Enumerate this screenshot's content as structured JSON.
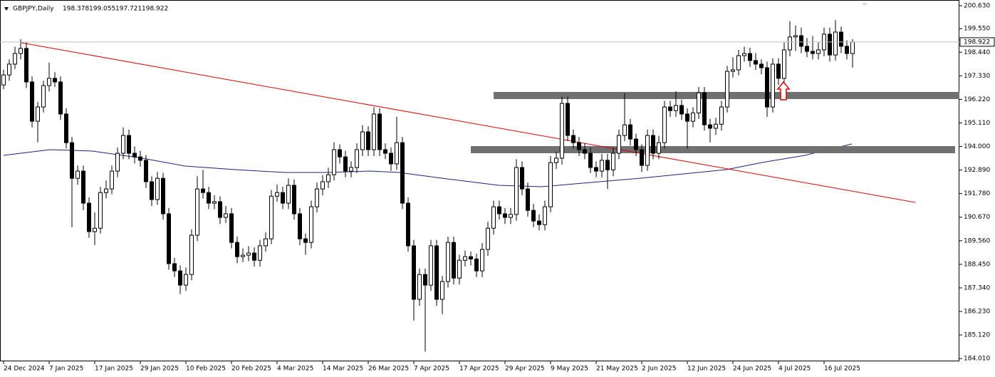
{
  "chart_data": {
    "type": "candlestick",
    "symbol": "GBPJPY,Daily",
    "bull_color": "#ffffff",
    "bear_color": "#000000",
    "ylim": [
      183.88,
      200.9
    ],
    "yticks": [
      {
        "value": 200.63,
        "label": "200.630"
      },
      {
        "value": 199.55,
        "label": "199.550"
      },
      {
        "value": 198.44,
        "label": "198.440"
      },
      {
        "value": 197.33,
        "label": "197.330"
      },
      {
        "value": 196.22,
        "label": "196.220"
      },
      {
        "value": 195.11,
        "label": "195.110"
      },
      {
        "value": 194.0,
        "label": "194.000"
      },
      {
        "value": 192.89,
        "label": "192.890"
      },
      {
        "value": 191.78,
        "label": "191.780"
      },
      {
        "value": 190.67,
        "label": "190.670"
      },
      {
        "value": 189.56,
        "label": "189.560"
      },
      {
        "value": 188.45,
        "label": "188.450"
      },
      {
        "value": 187.34,
        "label": "187.340"
      },
      {
        "value": 186.23,
        "label": "186.230"
      },
      {
        "value": 185.12,
        "label": "185.120"
      },
      {
        "value": 184.01,
        "label": "184.010"
      }
    ],
    "categories": [
      "24 Dec 2024",
      null,
      null,
      null,
      null,
      null,
      null,
      null,
      "7 Jan 2025",
      null,
      null,
      null,
      null,
      null,
      null,
      null,
      "17 Jan 2025",
      null,
      null,
      null,
      null,
      null,
      null,
      null,
      "29 Jan 2025",
      null,
      null,
      null,
      null,
      null,
      null,
      null,
      "10 Feb 2025",
      null,
      null,
      null,
      null,
      null,
      null,
      null,
      "20 Feb 2025",
      null,
      null,
      null,
      null,
      null,
      null,
      null,
      "4 Mar 2025",
      null,
      null,
      null,
      null,
      null,
      null,
      null,
      "14 Mar 2025",
      null,
      null,
      null,
      null,
      null,
      null,
      null,
      "26 Mar 2025",
      null,
      null,
      null,
      null,
      null,
      null,
      null,
      "7 Apr 2025",
      null,
      null,
      null,
      null,
      null,
      null,
      null,
      "17 Apr 2025",
      null,
      null,
      null,
      null,
      null,
      null,
      null,
      "29 Apr 2025",
      null,
      null,
      null,
      null,
      null,
      null,
      null,
      "9 May 2025",
      null,
      null,
      null,
      null,
      null,
      null,
      null,
      "21 May 2025",
      null,
      null,
      null,
      null,
      null,
      null,
      null,
      "2 Jun 2025",
      null,
      null,
      null,
      null,
      null,
      null,
      null,
      "12 Jun 2025",
      null,
      null,
      null,
      null,
      null,
      null,
      null,
      "24 Jun 2025",
      null,
      null,
      null,
      null,
      null,
      null,
      null,
      "4 Jul 2025",
      null,
      null,
      null,
      null,
      null,
      null,
      null,
      "16 Jul 2025",
      null,
      null,
      null,
      null,
      null
    ],
    "ohlc": [
      [
        196.9,
        197.62,
        196.7,
        197.37
      ],
      [
        197.37,
        198.1,
        197.1,
        197.88
      ],
      [
        197.88,
        198.7,
        197.65,
        198.38
      ],
      [
        198.38,
        199.05,
        198.1,
        198.62
      ],
      [
        198.62,
        198.9,
        196.75,
        197.04
      ],
      [
        197.04,
        197.3,
        194.9,
        195.19
      ],
      [
        195.19,
        196.1,
        194.2,
        195.86
      ],
      [
        195.86,
        197.1,
        195.6,
        196.87
      ],
      [
        196.87,
        197.95,
        196.6,
        197.21
      ],
      [
        197.21,
        197.5,
        196.8,
        197.04
      ],
      [
        197.04,
        197.3,
        195.25,
        195.53
      ],
      [
        195.53,
        195.8,
        193.9,
        194.18
      ],
      [
        194.18,
        194.45,
        190.2,
        192.5
      ],
      [
        192.5,
        193.1,
        192.2,
        192.84
      ],
      [
        192.84,
        193.1,
        191.0,
        191.33
      ],
      [
        191.33,
        191.6,
        189.7,
        189.99
      ],
      [
        189.99,
        190.9,
        189.35,
        190.15
      ],
      [
        190.15,
        192.1,
        189.9,
        191.83
      ],
      [
        191.83,
        192.4,
        191.55,
        192.0
      ],
      [
        192.0,
        193.1,
        191.75,
        192.84
      ],
      [
        192.84,
        193.95,
        192.55,
        193.68
      ],
      [
        193.68,
        194.9,
        193.4,
        194.52
      ],
      [
        194.52,
        194.8,
        193.4,
        193.68
      ],
      [
        193.68,
        194.0,
        193.2,
        193.51
      ],
      [
        193.51,
        193.8,
        193.05,
        193.35
      ],
      [
        193.35,
        193.6,
        192.05,
        192.34
      ],
      [
        192.34,
        192.6,
        191.2,
        191.5
      ],
      [
        191.5,
        192.8,
        191.25,
        192.5
      ],
      [
        192.5,
        192.75,
        190.55,
        190.83
      ],
      [
        190.83,
        191.1,
        188.2,
        188.48
      ],
      [
        188.48,
        188.75,
        187.85,
        188.14
      ],
      [
        188.14,
        188.4,
        187.05,
        187.47
      ],
      [
        187.47,
        188.3,
        187.2,
        187.97
      ],
      [
        187.97,
        190.1,
        187.7,
        189.82
      ],
      [
        189.82,
        192.6,
        189.55,
        192.0
      ],
      [
        192.0,
        192.9,
        191.55,
        191.83
      ],
      [
        191.83,
        192.1,
        191.05,
        191.33
      ],
      [
        191.33,
        191.7,
        191.05,
        191.4
      ],
      [
        191.4,
        191.65,
        190.35,
        190.66
      ],
      [
        190.66,
        191.2,
        190.4,
        190.83
      ],
      [
        190.83,
        191.1,
        189.2,
        189.48
      ],
      [
        189.48,
        189.75,
        188.5,
        188.81
      ],
      [
        188.81,
        189.2,
        188.55,
        188.88
      ],
      [
        188.88,
        189.3,
        188.6,
        188.98
      ],
      [
        188.98,
        189.25,
        188.35,
        188.64
      ],
      [
        188.64,
        189.6,
        188.35,
        189.32
      ],
      [
        189.32,
        189.95,
        189.05,
        189.65
      ],
      [
        189.65,
        191.95,
        189.4,
        191.66
      ],
      [
        191.66,
        192.2,
        191.4,
        191.83
      ],
      [
        191.83,
        192.1,
        191.05,
        191.33
      ],
      [
        191.33,
        192.5,
        191.05,
        192.17
      ],
      [
        192.17,
        192.45,
        190.55,
        190.83
      ],
      [
        190.83,
        191.1,
        189.35,
        189.65
      ],
      [
        189.65,
        189.9,
        188.9,
        189.48
      ],
      [
        189.48,
        191.45,
        189.2,
        191.16
      ],
      [
        191.16,
        192.3,
        190.9,
        192.0
      ],
      [
        192.0,
        192.65,
        191.7,
        192.34
      ],
      [
        192.34,
        193.0,
        192.05,
        192.67
      ],
      [
        192.67,
        194.2,
        192.4,
        193.85
      ],
      [
        193.85,
        194.1,
        193.2,
        193.51
      ],
      [
        193.51,
        193.8,
        192.55,
        192.84
      ],
      [
        192.84,
        193.3,
        192.55,
        193.01
      ],
      [
        193.01,
        194.15,
        192.75,
        193.85
      ],
      [
        193.85,
        195.0,
        193.55,
        194.69
      ],
      [
        194.69,
        194.95,
        193.55,
        193.85
      ],
      [
        193.85,
        195.85,
        193.55,
        195.53
      ],
      [
        195.53,
        195.8,
        193.55,
        193.85
      ],
      [
        193.85,
        194.15,
        193.4,
        193.68
      ],
      [
        193.68,
        193.95,
        192.85,
        193.18
      ],
      [
        193.18,
        195.4,
        192.9,
        194.18
      ],
      [
        194.18,
        194.45,
        191.05,
        191.33
      ],
      [
        191.33,
        191.6,
        189.05,
        189.32
      ],
      [
        189.32,
        189.6,
        185.8,
        186.8
      ],
      [
        186.8,
        188.25,
        186.5,
        187.97
      ],
      [
        187.97,
        188.25,
        184.34,
        187.47
      ],
      [
        187.47,
        189.6,
        187.2,
        189.32
      ],
      [
        189.32,
        189.6,
        186.5,
        186.8
      ],
      [
        186.8,
        187.9,
        186.1,
        187.64
      ],
      [
        187.64,
        189.75,
        187.35,
        189.48
      ],
      [
        189.48,
        189.75,
        187.5,
        187.8
      ],
      [
        187.8,
        188.9,
        187.5,
        188.64
      ],
      [
        188.64,
        189.1,
        188.35,
        188.81
      ],
      [
        188.81,
        189.05,
        188.4,
        188.7
      ],
      [
        188.7,
        188.95,
        187.85,
        188.14
      ],
      [
        188.14,
        189.45,
        187.85,
        189.15
      ],
      [
        189.15,
        190.45,
        188.85,
        190.15
      ],
      [
        190.15,
        191.45,
        189.85,
        191.16
      ],
      [
        191.16,
        191.45,
        190.55,
        190.83
      ],
      [
        190.83,
        191.1,
        190.35,
        190.66
      ],
      [
        190.66,
        191.1,
        190.35,
        190.8
      ],
      [
        190.8,
        193.4,
        190.5,
        193.01
      ],
      [
        193.01,
        193.3,
        191.7,
        192.0
      ],
      [
        192.0,
        192.3,
        190.7,
        190.99
      ],
      [
        190.99,
        191.3,
        190.2,
        190.49
      ],
      [
        190.49,
        190.8,
        190.05,
        190.32
      ],
      [
        190.32,
        191.45,
        190.05,
        191.16
      ],
      [
        191.16,
        193.55,
        190.9,
        193.24
      ],
      [
        193.24,
        193.75,
        192.95,
        193.45
      ],
      [
        193.45,
        196.35,
        193.15,
        196.03
      ],
      [
        196.03,
        196.35,
        194.25,
        194.52
      ],
      [
        194.52,
        194.8,
        193.9,
        194.18
      ],
      [
        194.18,
        194.45,
        193.55,
        193.85
      ],
      [
        193.85,
        194.15,
        193.4,
        193.68
      ],
      [
        193.68,
        193.95,
        192.75,
        193.01
      ],
      [
        193.01,
        193.3,
        192.55,
        192.84
      ],
      [
        192.84,
        193.65,
        192.55,
        193.35
      ],
      [
        193.35,
        193.65,
        192.0,
        192.9
      ],
      [
        192.9,
        193.95,
        192.6,
        193.68
      ],
      [
        193.68,
        194.8,
        193.4,
        194.52
      ],
      [
        194.52,
        196.5,
        194.25,
        195.02
      ],
      [
        195.02,
        195.3,
        194.05,
        194.35
      ],
      [
        194.35,
        194.6,
        193.55,
        193.85
      ],
      [
        193.85,
        194.1,
        192.8,
        193.11
      ],
      [
        193.11,
        194.8,
        192.85,
        194.52
      ],
      [
        194.52,
        194.8,
        193.4,
        193.68
      ],
      [
        193.68,
        194.5,
        193.4,
        194.18
      ],
      [
        194.18,
        196.15,
        193.9,
        195.86
      ],
      [
        195.86,
        196.15,
        195.4,
        195.69
      ],
      [
        195.69,
        196.6,
        195.4,
        195.93
      ],
      [
        195.93,
        196.2,
        195.25,
        195.53
      ],
      [
        195.53,
        195.8,
        193.9,
        195.19
      ],
      [
        195.19,
        195.85,
        194.9,
        195.58
      ],
      [
        195.58,
        196.8,
        195.3,
        196.53
      ],
      [
        196.53,
        196.8,
        194.75,
        195.02
      ],
      [
        195.02,
        195.3,
        194.2,
        194.86
      ],
      [
        194.86,
        195.35,
        194.55,
        195.05
      ],
      [
        195.05,
        196.15,
        194.75,
        195.86
      ],
      [
        195.86,
        197.8,
        195.6,
        197.54
      ],
      [
        197.54,
        198.2,
        197.25,
        197.61
      ],
      [
        197.61,
        198.55,
        197.35,
        198.28
      ],
      [
        198.28,
        198.7,
        198.0,
        198.38
      ],
      [
        198.38,
        198.65,
        197.75,
        198.05
      ],
      [
        198.05,
        198.4,
        197.6,
        197.88
      ],
      [
        197.88,
        198.1,
        197.4,
        197.71
      ],
      [
        197.71,
        198.0,
        195.4,
        195.86
      ],
      [
        195.86,
        198.15,
        195.6,
        197.88
      ],
      [
        197.88,
        198.15,
        196.9,
        197.21
      ],
      [
        197.21,
        198.9,
        196.95,
        198.55
      ],
      [
        198.55,
        199.9,
        198.25,
        199.16
      ],
      [
        199.16,
        199.7,
        198.5,
        199.22
      ],
      [
        199.22,
        199.6,
        198.4,
        198.72
      ],
      [
        198.72,
        199.1,
        198.2,
        198.48
      ],
      [
        198.48,
        199.2,
        198.1,
        198.38
      ],
      [
        198.38,
        198.9,
        198.1,
        198.55
      ],
      [
        198.55,
        199.6,
        198.25,
        199.29
      ],
      [
        199.29,
        199.6,
        198.0,
        198.31
      ],
      [
        198.31,
        199.95,
        198.05,
        199.39
      ],
      [
        199.39,
        199.65,
        198.4,
        198.72
      ],
      [
        198.72,
        199.0,
        198.1,
        198.38
      ],
      [
        198.378,
        199.055,
        197.721,
        198.922
      ]
    ]
  }
}
